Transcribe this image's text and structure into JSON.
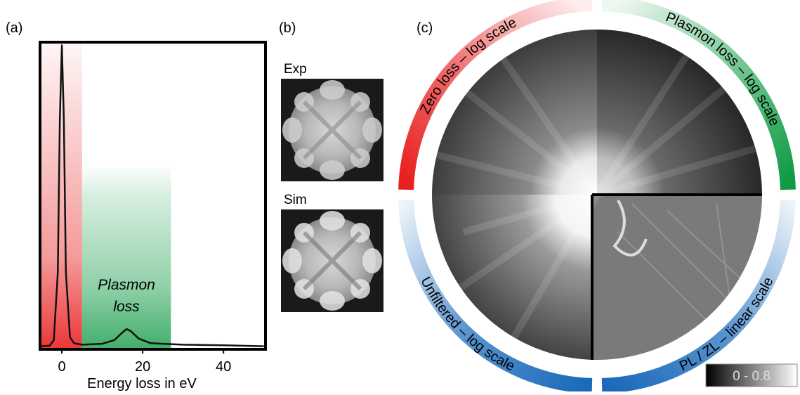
{
  "panel_labels": [
    "(a)",
    "(b)",
    "(c)"
  ],
  "chart_data": {
    "type": "line",
    "x_label": "Energy loss in eV",
    "annotation": [
      "Plasmon",
      "loss"
    ],
    "xlim": [
      -5.4,
      50.4
    ],
    "ylim": [
      0,
      100
    ],
    "xticks": [
      0,
      20,
      40
    ],
    "regions": [
      {
        "xlim": [
          -5.4,
          5
        ],
        "color": "#e8201f"
      },
      {
        "xlim": [
          5,
          27
        ],
        "color": "#1fa050"
      }
    ],
    "x": [
      -5,
      -3,
      -2,
      -1,
      -0.5,
      0,
      0.5,
      1,
      2,
      3,
      5,
      10,
      13,
      15,
      16,
      17,
      19,
      22,
      25,
      30,
      40,
      50
    ],
    "series": [
      {
        "color": "#111111",
        "values": [
          1,
          1.2,
          3,
          25,
          75,
          99,
          75,
          25,
          4,
          2,
          1.5,
          1.8,
          3,
          5.5,
          6.6,
          6,
          3.5,
          2,
          1.8,
          1.5,
          1.3,
          1
        ]
      }
    ]
  },
  "panel_b": {
    "labels": [
      "Exp",
      "Sim"
    ]
  },
  "panel_c": {
    "quadrant_labels": [
      "Zero loss – log scale",
      "Plasmon loss – log scale",
      "Unfiltered – log scale",
      "PL / ZL – linear scale"
    ],
    "colorbar_label": "0 - 0.8"
  }
}
